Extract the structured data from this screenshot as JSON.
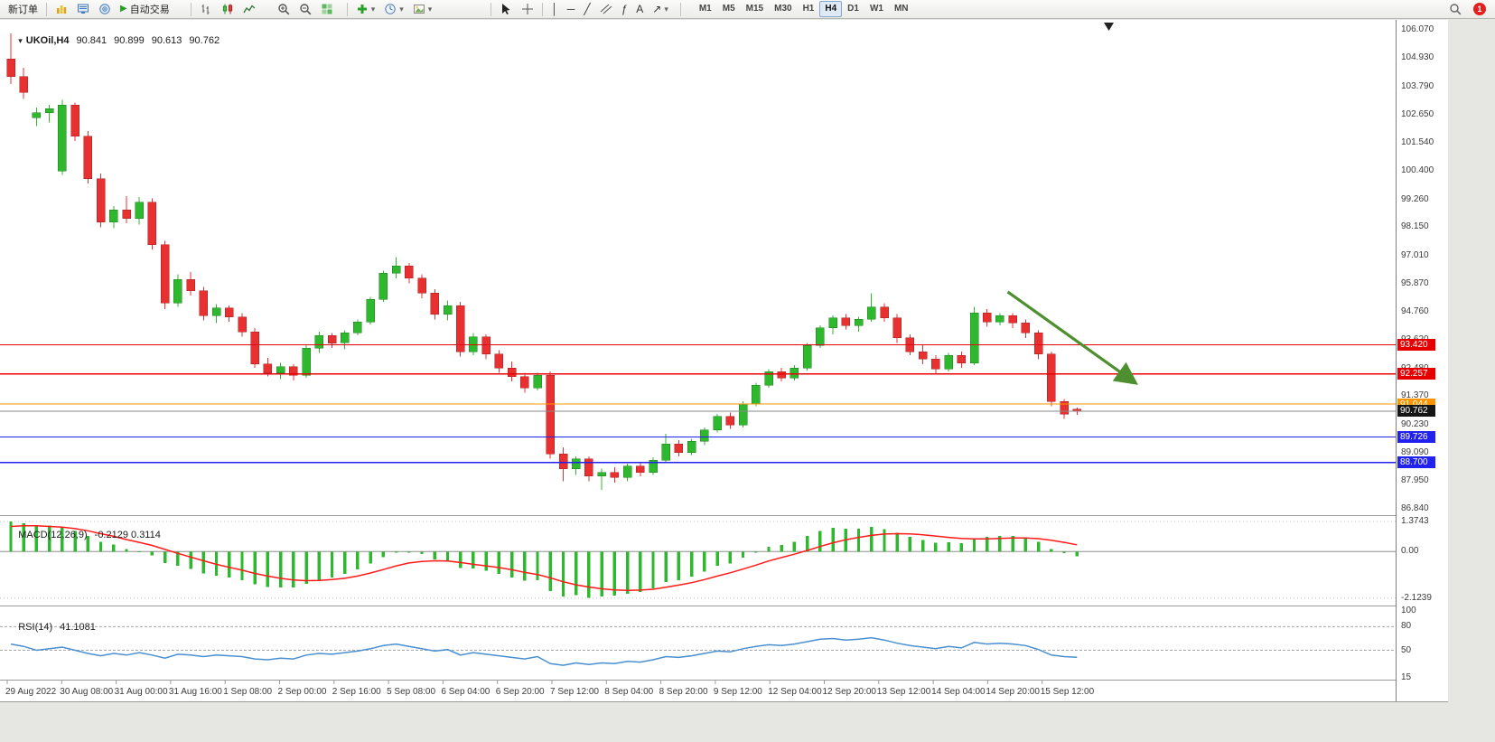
{
  "toolbar": {
    "new_order": "新订单",
    "autotrading": "自动交易",
    "glyphs": {
      "play": "▶",
      "dropdown": "▾",
      "crosshair": "+",
      "vertical_line": "│",
      "horizontal_line": "─",
      "trendline": "╱",
      "fibonacci": "ƒ",
      "text_tool": "A",
      "arrow_tool": "↗"
    },
    "timeframes": [
      "M1",
      "M5",
      "M15",
      "M30",
      "H1",
      "H4",
      "D1",
      "W1",
      "MN"
    ],
    "active_timeframe": "H4",
    "notification_count": "1",
    "icon_names": [
      "new-chart",
      "market-watch",
      "data-window",
      "autotrading-play",
      "bar-chart",
      "candlestick-chart",
      "line-chart",
      "zoom-in",
      "zoom-out",
      "tile-windows",
      "add-indicator",
      "periods-clock",
      "template-image",
      "cursor",
      "crosshair",
      "vertical-line",
      "horizontal-line",
      "trendline",
      "equidistant-channel",
      "fibonacci",
      "text-label",
      "arrow-tools",
      "search",
      "notification"
    ]
  },
  "header": {
    "symbol": "UKOil,H4",
    "open": "90.841",
    "high": "90.899",
    "low": "90.613",
    "close": "90.762"
  },
  "price_axis": {
    "ticks": [
      "106.070",
      "104.930",
      "103.790",
      "102.650",
      "101.540",
      "100.400",
      "99.260",
      "98.150",
      "97.010",
      "95.870",
      "94.760",
      "93.620",
      "92.480",
      "91.370",
      "90.230",
      "89.090",
      "87.950",
      "86.840"
    ]
  },
  "hlines": [
    {
      "price": 93.42,
      "label": "93.420",
      "color": "#e80000"
    },
    {
      "price": 92.257,
      "label": "92.257",
      "color": "#e80000"
    },
    {
      "price": 91.044,
      "label": "91.044",
      "color": "#ff9400"
    },
    {
      "price": 90.762,
      "label": "90.762",
      "color": "#8a8a8a",
      "tag_color": "#161616",
      "current": true
    },
    {
      "price": 89.726,
      "label": "89.726",
      "color": "#2222ee"
    },
    {
      "price": 88.7,
      "label": "88.700",
      "color": "#2222ee"
    }
  ],
  "annotation": {
    "type": "arrow",
    "from_bar": 78.6,
    "from_price": 95.55,
    "to_bar": 88.4,
    "to_price": 91.95,
    "color": "#4e8f2f"
  },
  "macd": {
    "title": "MACD(12,26,9)",
    "values": "-0.2129 0.3114",
    "axis": [
      {
        "label": "1.3743",
        "value": 1.3743
      },
      {
        "label": "0.00",
        "value": 0
      },
      {
        "label": "-2.1239",
        "value": -2.1239
      }
    ]
  },
  "rsi": {
    "title": "RSI(14)",
    "value": "41.1081",
    "axis": [
      {
        "label": "100",
        "value": 100
      },
      {
        "label": "80",
        "value": 80
      },
      {
        "label": "50",
        "value": 50
      },
      {
        "label": "15",
        "value": 15
      }
    ],
    "levels": [
      80,
      50
    ]
  },
  "time_axis": {
    "labels": [
      "29 Aug 2022",
      "30 Aug 08:00",
      "31 Aug 00:00",
      "31 Aug 16:00",
      "1 Sep 08:00",
      "2 Sep 00:00",
      "2 Sep 16:00",
      "5 Sep 08:00",
      "6 Sep 04:00",
      "6 Sep 20:00",
      "7 Sep 12:00",
      "8 Sep 04:00",
      "8 Sep 20:00",
      "9 Sep 12:00",
      "12 Sep 04:00",
      "12 Sep 20:00",
      "13 Sep 12:00",
      "14 Sep 04:00",
      "14 Sep 20:00",
      "15 Sep 12:00"
    ]
  },
  "chart_data": [
    {
      "type": "candlestick",
      "symbol": "UKOil",
      "timeframe": "H4",
      "ylim": [
        86.84,
        106.07
      ],
      "up_color": "#2db82d",
      "down_color": "#e83030",
      "candles": [
        [
          104.9,
          105.92,
          103.9,
          104.2
        ],
        [
          104.2,
          104.55,
          103.3,
          103.55
        ],
        [
          102.55,
          102.95,
          102.2,
          102.75
        ],
        [
          102.75,
          103.05,
          102.35,
          102.9
        ],
        [
          100.4,
          103.25,
          100.25,
          103.05
        ],
        [
          103.05,
          103.15,
          101.6,
          101.8
        ],
        [
          101.8,
          102.0,
          99.9,
          100.1
        ],
        [
          100.1,
          100.3,
          98.15,
          98.35
        ],
        [
          98.35,
          99.0,
          98.1,
          98.85
        ],
        [
          98.85,
          99.4,
          98.3,
          98.5
        ],
        [
          98.5,
          99.35,
          98.25,
          99.15
        ],
        [
          99.15,
          99.3,
          97.25,
          97.45
        ],
        [
          97.45,
          97.6,
          94.85,
          95.1
        ],
        [
          95.1,
          96.25,
          94.95,
          96.05
        ],
        [
          96.05,
          96.35,
          95.4,
          95.6
        ],
        [
          95.6,
          95.75,
          94.4,
          94.6
        ],
        [
          94.6,
          95.05,
          94.3,
          94.9
        ],
        [
          94.9,
          95.0,
          94.35,
          94.55
        ],
        [
          94.55,
          94.7,
          93.75,
          93.95
        ],
        [
          93.95,
          94.1,
          92.5,
          92.65
        ],
        [
          92.65,
          92.9,
          92.15,
          92.3
        ],
        [
          92.3,
          92.7,
          92.05,
          92.55
        ],
        [
          92.55,
          92.65,
          92.0,
          92.2
        ],
        [
          92.2,
          93.4,
          92.1,
          93.3
        ],
        [
          93.3,
          93.95,
          93.1,
          93.8
        ],
        [
          93.8,
          93.9,
          93.3,
          93.5
        ],
        [
          93.5,
          94.0,
          93.25,
          93.9
        ],
        [
          93.9,
          94.45,
          93.8,
          94.35
        ],
        [
          94.35,
          95.35,
          94.25,
          95.25
        ],
        [
          95.25,
          96.4,
          95.15,
          96.3
        ],
        [
          96.3,
          96.95,
          96.1,
          96.6
        ],
        [
          96.6,
          96.7,
          95.9,
          96.1
        ],
        [
          96.1,
          96.25,
          95.3,
          95.5
        ],
        [
          95.5,
          95.65,
          94.45,
          94.65
        ],
        [
          94.65,
          95.2,
          94.4,
          95.0
        ],
        [
          95.0,
          95.15,
          92.95,
          93.15
        ],
        [
          93.15,
          93.9,
          93.0,
          93.75
        ],
        [
          93.75,
          93.85,
          92.85,
          93.05
        ],
        [
          93.05,
          93.2,
          92.3,
          92.5
        ],
        [
          92.5,
          92.75,
          91.95,
          92.15
        ],
        [
          92.15,
          92.3,
          91.5,
          91.7
        ],
        [
          91.7,
          92.3,
          91.6,
          92.2
        ],
        [
          92.2,
          92.35,
          88.85,
          89.05
        ],
        [
          89.05,
          89.3,
          87.95,
          88.45
        ],
        [
          88.45,
          88.95,
          88.2,
          88.85
        ],
        [
          88.85,
          88.95,
          87.95,
          88.15
        ],
        [
          88.15,
          88.45,
          87.6,
          88.3
        ],
        [
          88.3,
          88.5,
          87.9,
          88.1
        ],
        [
          88.1,
          88.65,
          87.95,
          88.55
        ],
        [
          88.55,
          88.7,
          88.15,
          88.3
        ],
        [
          88.3,
          88.9,
          88.2,
          88.8
        ],
        [
          88.8,
          89.85,
          88.7,
          89.45
        ],
        [
          89.45,
          89.6,
          88.95,
          89.1
        ],
        [
          89.1,
          89.65,
          89.0,
          89.55
        ],
        [
          89.55,
          90.1,
          89.4,
          90.0
        ],
        [
          90.0,
          90.65,
          89.9,
          90.55
        ],
        [
          90.55,
          90.7,
          90.05,
          90.2
        ],
        [
          90.2,
          91.15,
          90.1,
          91.05
        ],
        [
          91.05,
          91.9,
          90.95,
          91.8
        ],
        [
          91.8,
          92.45,
          91.7,
          92.35
        ],
        [
          92.35,
          92.5,
          91.95,
          92.1
        ],
        [
          92.1,
          92.6,
          92.0,
          92.5
        ],
        [
          92.5,
          93.5,
          92.4,
          93.4
        ],
        [
          93.4,
          94.2,
          93.3,
          94.1
        ],
        [
          94.1,
          94.6,
          93.85,
          94.5
        ],
        [
          94.5,
          94.65,
          94.05,
          94.2
        ],
        [
          94.2,
          94.55,
          93.95,
          94.45
        ],
        [
          94.45,
          95.5,
          94.35,
          94.95
        ],
        [
          94.95,
          95.1,
          94.35,
          94.5
        ],
        [
          94.5,
          94.65,
          93.5,
          93.7
        ],
        [
          93.7,
          93.85,
          93.0,
          93.15
        ],
        [
          93.15,
          93.4,
          92.65,
          92.85
        ],
        [
          92.85,
          93.0,
          92.25,
          92.45
        ],
        [
          92.45,
          93.1,
          92.35,
          93.0
        ],
        [
          93.0,
          93.15,
          92.5,
          92.7
        ],
        [
          92.7,
          94.95,
          92.6,
          94.7
        ],
        [
          94.7,
          94.85,
          94.15,
          94.35
        ],
        [
          94.35,
          94.7,
          94.2,
          94.6
        ],
        [
          94.6,
          94.7,
          94.1,
          94.3
        ],
        [
          94.3,
          94.45,
          93.7,
          93.9
        ],
        [
          93.9,
          94.0,
          92.85,
          93.05
        ],
        [
          93.05,
          93.15,
          90.95,
          91.15
        ],
        [
          91.15,
          91.25,
          90.45,
          90.65
        ],
        [
          90.841,
          90.899,
          90.613,
          90.762
        ]
      ]
    },
    {
      "type": "bar",
      "name": "MACD histogram",
      "ylim": [
        -2.3,
        1.5
      ],
      "color": "#2db82d",
      "values": [
        1.37,
        1.3,
        1.22,
        1.18,
        1.12,
        0.95,
        0.72,
        0.45,
        0.32,
        0.12,
        0.02,
        -0.18,
        -0.52,
        -0.65,
        -0.8,
        -1.0,
        -1.1,
        -1.18,
        -1.3,
        -1.5,
        -1.62,
        -1.65,
        -1.65,
        -1.48,
        -1.3,
        -1.18,
        -1.02,
        -0.82,
        -0.55,
        -0.25,
        -0.05,
        -0.02,
        -0.12,
        -0.35,
        -0.42,
        -0.75,
        -0.78,
        -0.88,
        -1.02,
        -1.18,
        -1.32,
        -1.3,
        -1.8,
        -2.05,
        -2.0,
        -2.12,
        -2.05,
        -2.02,
        -1.92,
        -1.85,
        -1.68,
        -1.4,
        -1.3,
        -1.15,
        -0.92,
        -0.65,
        -0.55,
        -0.28,
        -0.02,
        0.22,
        0.3,
        0.45,
        0.72,
        0.95,
        1.08,
        1.05,
        1.05,
        1.12,
        1.02,
        0.85,
        0.68,
        0.52,
        0.4,
        0.42,
        0.38,
        0.62,
        0.68,
        0.72,
        0.72,
        0.62,
        0.45,
        0.12,
        -0.08,
        -0.21
      ]
    },
    {
      "type": "line",
      "name": "MACD signal",
      "color": "#ff1a1a",
      "values": [
        1.15,
        1.18,
        1.18,
        1.15,
        1.12,
        1.05,
        0.95,
        0.82,
        0.7,
        0.55,
        0.42,
        0.28,
        0.1,
        -0.08,
        -0.25,
        -0.42,
        -0.58,
        -0.72,
        -0.85,
        -1.0,
        -1.12,
        -1.22,
        -1.3,
        -1.33,
        -1.32,
        -1.28,
        -1.22,
        -1.12,
        -0.98,
        -0.82,
        -0.65,
        -0.52,
        -0.45,
        -0.42,
        -0.43,
        -0.5,
        -0.58,
        -0.65,
        -0.73,
        -0.83,
        -0.95,
        -1.05,
        -1.2,
        -1.38,
        -1.52,
        -1.62,
        -1.7,
        -1.75,
        -1.77,
        -1.76,
        -1.72,
        -1.63,
        -1.53,
        -1.42,
        -1.28,
        -1.12,
        -0.97,
        -0.8,
        -0.62,
        -0.43,
        -0.27,
        -0.12,
        0.05,
        0.23,
        0.4,
        0.54,
        0.65,
        0.74,
        0.8,
        0.82,
        0.81,
        0.77,
        0.71,
        0.65,
        0.6,
        0.58,
        0.58,
        0.6,
        0.62,
        0.62,
        0.59,
        0.52,
        0.42,
        0.31
      ]
    },
    {
      "type": "line",
      "name": "RSI",
      "ylim": [
        15,
        100
      ],
      "color": "#4a8fd0",
      "values": [
        58,
        55,
        50,
        52,
        54,
        50,
        46,
        43,
        46,
        44,
        47,
        44,
        40,
        45,
        44,
        42,
        44,
        43,
        42,
        39,
        38,
        40,
        39,
        44,
        46,
        45,
        47,
        49,
        52,
        56,
        58,
        55,
        52,
        49,
        51,
        44,
        47,
        45,
        43,
        41,
        39,
        42,
        33,
        31,
        34,
        32,
        34,
        33,
        36,
        35,
        38,
        42,
        41,
        43,
        46,
        49,
        48,
        52,
        55,
        57,
        56,
        58,
        61,
        64,
        65,
        63,
        64,
        66,
        63,
        59,
        56,
        54,
        52,
        55,
        53,
        60,
        58,
        59,
        58,
        56,
        51,
        44,
        42,
        41.1
      ]
    }
  ]
}
